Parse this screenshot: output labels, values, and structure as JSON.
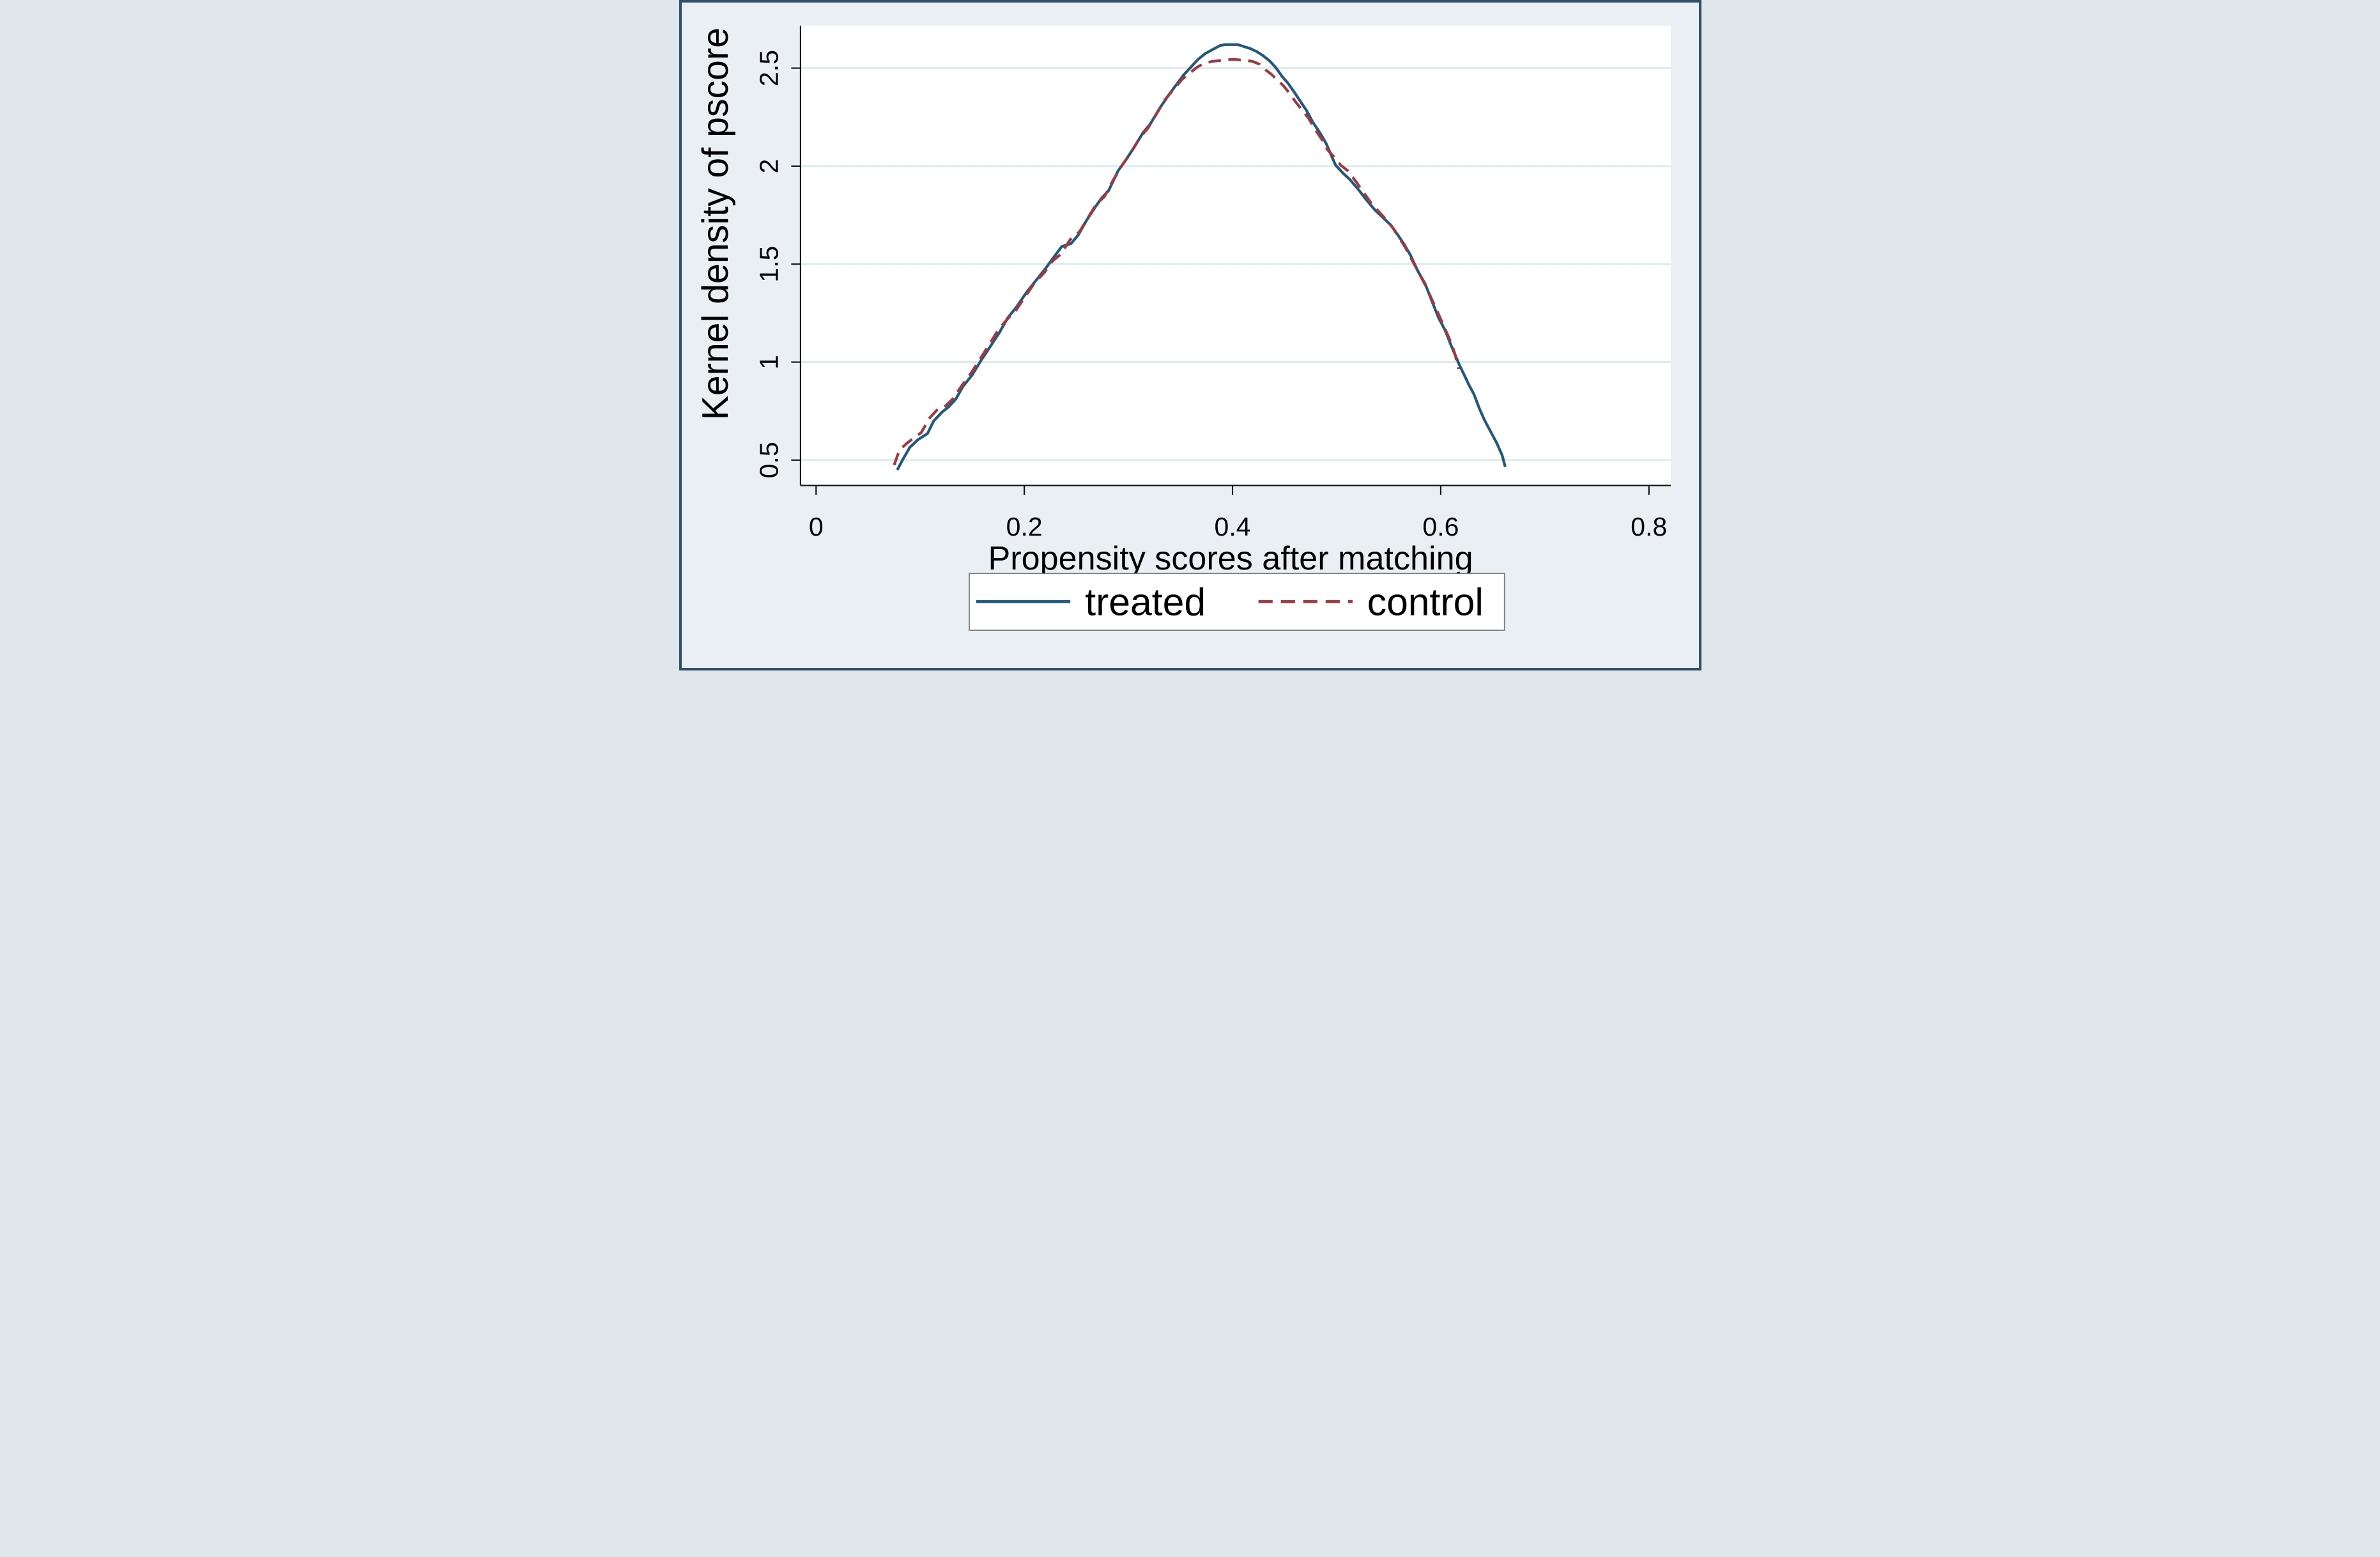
{
  "chart_data": {
    "type": "line",
    "title": "",
    "xlabel": "Propensity scores after matching",
    "ylabel": "Kernel density  of pscore",
    "xlim": [
      -0.015,
      0.82
    ],
    "ylim": [
      0.37,
      2.72
    ],
    "grid": "horizontal gridlines at each y tick",
    "legend_position": "bottom center",
    "x_ticks": {
      "values": [
        0,
        0.2,
        0.4,
        0.6,
        0.8
      ],
      "labels": [
        "0",
        "0.2",
        "0.4",
        "0.6",
        "0.8"
      ]
    },
    "y_ticks": {
      "values": [
        0.5,
        1,
        1.5,
        2,
        2.5
      ],
      "labels": [
        "0.5",
        "1",
        "1.5",
        "2",
        "2.5"
      ]
    },
    "series": [
      {
        "name": "treated",
        "line_style": "solid",
        "color": "#24587c",
        "points": [
          [
            0.078,
            0.45
          ],
          [
            0.083,
            0.5
          ],
          [
            0.09,
            0.565
          ],
          [
            0.098,
            0.605
          ],
          [
            0.107,
            0.635
          ],
          [
            0.113,
            0.7
          ],
          [
            0.121,
            0.745
          ],
          [
            0.127,
            0.77
          ],
          [
            0.134,
            0.81
          ],
          [
            0.141,
            0.875
          ],
          [
            0.15,
            0.935
          ],
          [
            0.158,
            1.005
          ],
          [
            0.168,
            1.085
          ],
          [
            0.176,
            1.15
          ],
          [
            0.184,
            1.225
          ],
          [
            0.193,
            1.285
          ],
          [
            0.202,
            1.355
          ],
          [
            0.211,
            1.415
          ],
          [
            0.22,
            1.475
          ],
          [
            0.229,
            1.54
          ],
          [
            0.236,
            1.59
          ],
          [
            0.245,
            1.605
          ],
          [
            0.252,
            1.65
          ],
          [
            0.26,
            1.725
          ],
          [
            0.268,
            1.79
          ],
          [
            0.274,
            1.835
          ],
          [
            0.281,
            1.875
          ],
          [
            0.29,
            1.975
          ],
          [
            0.298,
            2.035
          ],
          [
            0.306,
            2.1
          ],
          [
            0.314,
            2.17
          ],
          [
            0.321,
            2.215
          ],
          [
            0.33,
            2.295
          ],
          [
            0.339,
            2.365
          ],
          [
            0.346,
            2.415
          ],
          [
            0.353,
            2.465
          ],
          [
            0.36,
            2.505
          ],
          [
            0.367,
            2.545
          ],
          [
            0.374,
            2.575
          ],
          [
            0.381,
            2.595
          ],
          [
            0.388,
            2.615
          ],
          [
            0.393,
            2.62
          ],
          [
            0.405,
            2.62
          ],
          [
            0.411,
            2.61
          ],
          [
            0.417,
            2.6
          ],
          [
            0.423,
            2.585
          ],
          [
            0.429,
            2.565
          ],
          [
            0.436,
            2.535
          ],
          [
            0.442,
            2.5
          ],
          [
            0.448,
            2.455
          ],
          [
            0.453,
            2.425
          ],
          [
            0.459,
            2.38
          ],
          [
            0.464,
            2.34
          ],
          [
            0.471,
            2.285
          ],
          [
            0.477,
            2.225
          ],
          [
            0.484,
            2.17
          ],
          [
            0.49,
            2.115
          ],
          [
            0.494,
            2.065
          ],
          [
            0.499,
            2.005
          ],
          [
            0.506,
            1.965
          ],
          [
            0.513,
            1.93
          ],
          [
            0.521,
            1.88
          ],
          [
            0.529,
            1.825
          ],
          [
            0.537,
            1.775
          ],
          [
            0.545,
            1.735
          ],
          [
            0.552,
            1.7
          ],
          [
            0.558,
            1.655
          ],
          [
            0.565,
            1.6
          ],
          [
            0.571,
            1.545
          ],
          [
            0.578,
            1.465
          ],
          [
            0.585,
            1.4
          ],
          [
            0.592,
            1.305
          ],
          [
            0.598,
            1.225
          ],
          [
            0.604,
            1.165
          ],
          [
            0.61,
            1.085
          ],
          [
            0.614,
            1.035
          ],
          [
            0.618,
            0.985
          ],
          [
            0.623,
            0.93
          ],
          [
            0.627,
            0.885
          ],
          [
            0.632,
            0.835
          ],
          [
            0.637,
            0.765
          ],
          [
            0.642,
            0.705
          ],
          [
            0.648,
            0.645
          ],
          [
            0.654,
            0.585
          ],
          [
            0.659,
            0.525
          ],
          [
            0.662,
            0.465
          ]
        ]
      },
      {
        "name": "control",
        "line_style": "dashed",
        "color": "#9d3b42",
        "points": [
          [
            0.075,
            0.475
          ],
          [
            0.08,
            0.55
          ],
          [
            0.087,
            0.585
          ],
          [
            0.093,
            0.61
          ],
          [
            0.101,
            0.64
          ],
          [
            0.109,
            0.715
          ],
          [
            0.116,
            0.755
          ],
          [
            0.123,
            0.77
          ],
          [
            0.131,
            0.81
          ],
          [
            0.14,
            0.88
          ],
          [
            0.149,
            0.945
          ],
          [
            0.158,
            1.02
          ],
          [
            0.167,
            1.095
          ],
          [
            0.175,
            1.165
          ],
          [
            0.183,
            1.215
          ],
          [
            0.192,
            1.265
          ],
          [
            0.201,
            1.335
          ],
          [
            0.21,
            1.405
          ],
          [
            0.219,
            1.455
          ],
          [
            0.227,
            1.515
          ],
          [
            0.235,
            1.55
          ],
          [
            0.244,
            1.625
          ],
          [
            0.253,
            1.665
          ],
          [
            0.261,
            1.735
          ],
          [
            0.269,
            1.805
          ],
          [
            0.277,
            1.845
          ],
          [
            0.285,
            1.925
          ],
          [
            0.294,
            2.005
          ],
          [
            0.302,
            2.065
          ],
          [
            0.311,
            2.145
          ],
          [
            0.319,
            2.195
          ],
          [
            0.328,
            2.275
          ],
          [
            0.336,
            2.345
          ],
          [
            0.344,
            2.395
          ],
          [
            0.352,
            2.445
          ],
          [
            0.359,
            2.475
          ],
          [
            0.366,
            2.505
          ],
          [
            0.373,
            2.525
          ],
          [
            0.381,
            2.535
          ],
          [
            0.391,
            2.54
          ],
          [
            0.401,
            2.545
          ],
          [
            0.411,
            2.54
          ],
          [
            0.419,
            2.535
          ],
          [
            0.426,
            2.52
          ],
          [
            0.432,
            2.49
          ],
          [
            0.437,
            2.47
          ],
          [
            0.443,
            2.44
          ],
          [
            0.449,
            2.41
          ],
          [
            0.455,
            2.37
          ],
          [
            0.461,
            2.325
          ],
          [
            0.467,
            2.285
          ],
          [
            0.473,
            2.245
          ],
          [
            0.479,
            2.19
          ],
          [
            0.486,
            2.135
          ],
          [
            0.491,
            2.085
          ],
          [
            0.497,
            2.05
          ],
          [
            0.504,
            2.005
          ],
          [
            0.511,
            1.975
          ],
          [
            0.518,
            1.925
          ],
          [
            0.526,
            1.865
          ],
          [
            0.534,
            1.805
          ],
          [
            0.541,
            1.765
          ],
          [
            0.548,
            1.725
          ],
          [
            0.554,
            1.685
          ],
          [
            0.56,
            1.635
          ],
          [
            0.566,
            1.585
          ],
          [
            0.572,
            1.525
          ],
          [
            0.579,
            1.455
          ],
          [
            0.586,
            1.385
          ],
          [
            0.591,
            1.325
          ],
          [
            0.597,
            1.255
          ],
          [
            0.602,
            1.195
          ],
          [
            0.607,
            1.135
          ],
          [
            0.611,
            1.085
          ],
          [
            0.614,
            1.035
          ],
          [
            0.617,
            0.965
          ]
        ]
      }
    ]
  },
  "legend": {
    "items": [
      {
        "label": "treated"
      },
      {
        "label": "control"
      }
    ],
    "border_color": "#7a7a7a",
    "background": "#ffffff"
  },
  "colors": {
    "canvas_background": "#e9eff2",
    "plot_background": "#ffffff",
    "gridline": "#dfeaee",
    "axis": "#111111",
    "treated": "#24587c",
    "control": "#9d3b42",
    "frame": "#2e506c"
  }
}
